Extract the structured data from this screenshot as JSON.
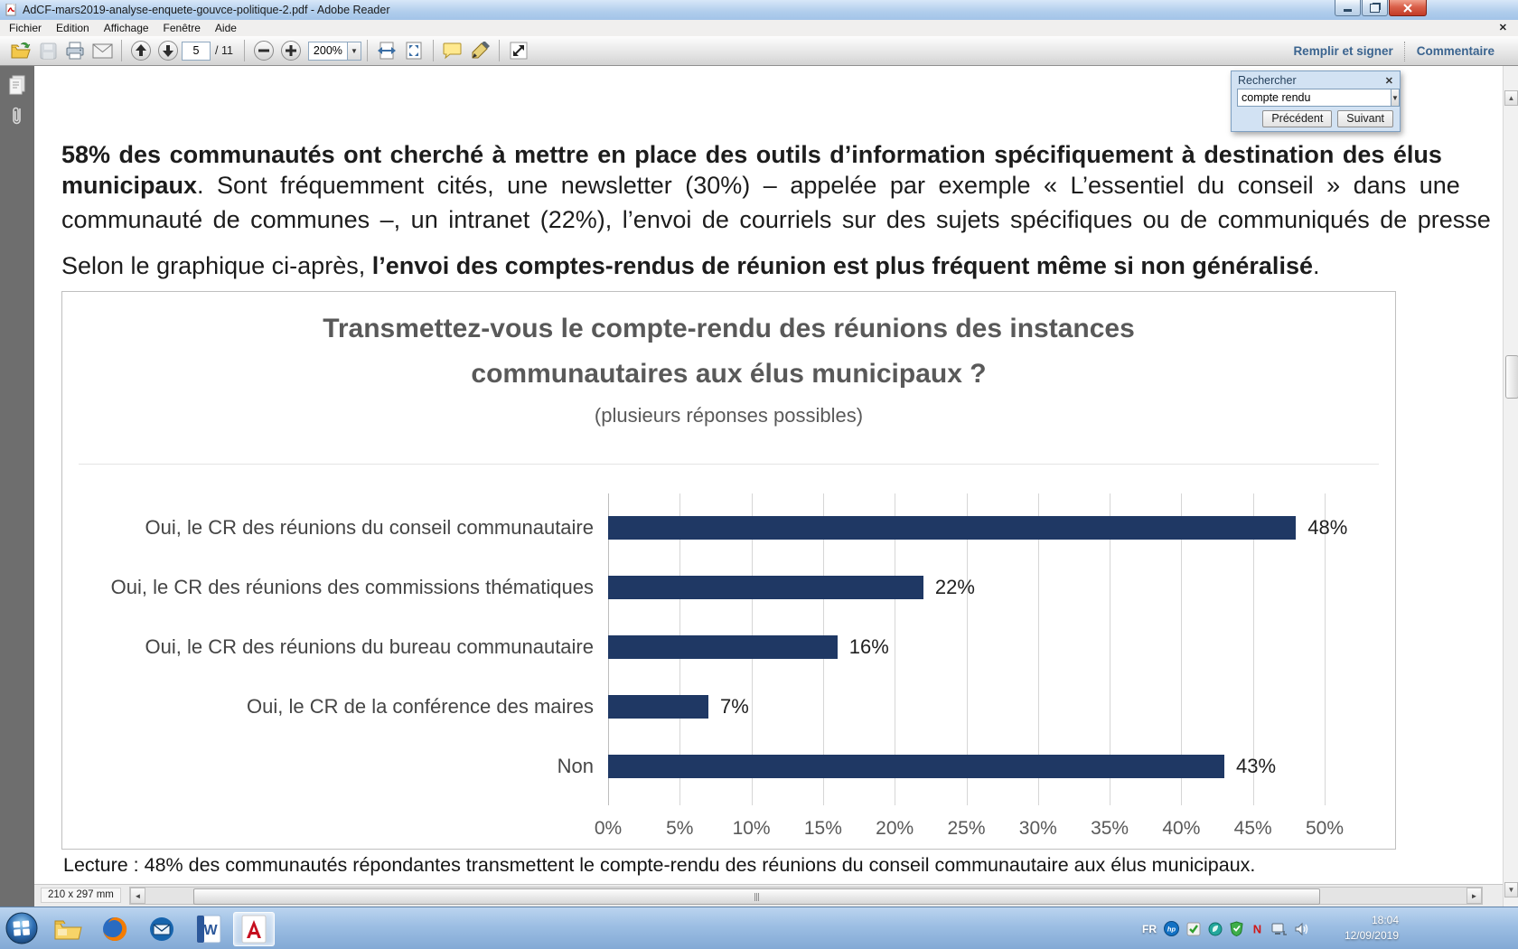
{
  "window": {
    "title": "AdCF-mars2019-analyse-enquete-gouvce-politique-2.pdf - Adobe Reader"
  },
  "menu": {
    "items": [
      "Fichier",
      "Edition",
      "Affichage",
      "Fenêtre",
      "Aide"
    ]
  },
  "toolbar": {
    "page_current": "5",
    "page_total": "/ 11",
    "zoom_level": "200%",
    "fill_sign_label": "Remplir et signer",
    "comment_label": "Commentaire"
  },
  "search_panel": {
    "title": "Rechercher",
    "query": "compte rendu",
    "prev_label": "Précédent",
    "next_label": "Suivant"
  },
  "document": {
    "p1_line1": "58% des communautés ont cherché à mettre en place des outils d’information spécifiquement à destination des élus",
    "p1_line2_bold": "municipaux",
    "p1_line2_rest": ". Sont fréquemment cités, une newsletter (30%) – appelée par exemple « L’essentiel du conseil » dans une",
    "p1_line3": "communauté de communes –, un intranet (22%), l’envoi de courriels sur des sujets spécifiques ou de communiqués de presse",
    "p2_lead": "Selon le graphique ci-après, ",
    "p2_bold": "l’envoi des comptes-rendus de réunion est plus fréquent même si non généralisé",
    "p2_end": ".",
    "caption": "Lecture : 48% des communautés répondantes transmettent le compte-rendu des réunions du conseil communautaire aux élus municipaux."
  },
  "chart_data": {
    "type": "bar",
    "orientation": "horizontal",
    "title_line1": "Transmettez-vous le compte-rendu des réunions des instances",
    "title_line2": "communautaires aux élus municipaux ?",
    "subtitle": "(plusieurs réponses possibles)",
    "categories": [
      "Oui, le CR des réunions du conseil communautaire",
      "Oui, le CR des réunions des commissions thématiques",
      "Oui, le CR des réunions du bureau communautaire",
      "Oui, le CR de la conférence des maires",
      "Non"
    ],
    "values": [
      48,
      22,
      16,
      7,
      43
    ],
    "value_labels": [
      "48%",
      "22%",
      "16%",
      "7%",
      "43%"
    ],
    "xlim": [
      0,
      50
    ],
    "x_ticks": [
      "0%",
      "5%",
      "10%",
      "15%",
      "20%",
      "25%",
      "30%",
      "35%",
      "40%",
      "45%",
      "50%"
    ],
    "bar_color": "#1F3864",
    "grid": true,
    "legend": false
  },
  "statusbar": {
    "page_size": "210 x 297 mm"
  },
  "taskbar": {
    "language": "FR",
    "time": "18:04",
    "date": "12/09/2019",
    "hp_label": "hp",
    "n_label": "N"
  }
}
